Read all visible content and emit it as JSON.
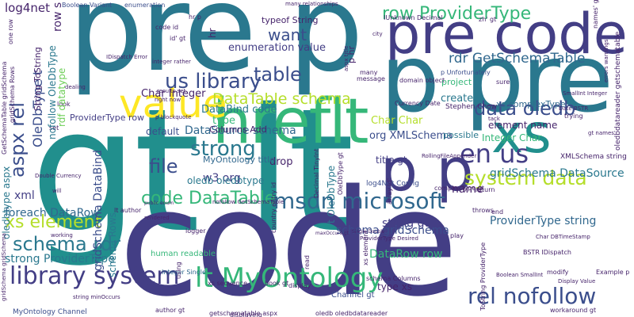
{
  "palette": {
    "dark_blue": "#3b4e8c",
    "navy": "#433e85",
    "purple": "#46246b",
    "teal": "#218f8d",
    "teal_dark": "#2a788e",
    "blue": "#31688e",
    "green": "#35b779",
    "light_green": "#6ece58",
    "lime": "#b5de2b",
    "yellow": "#fde725"
  },
  "words": {
    "gt_lt": "gt lt",
    "code_pre_bottom": "code",
    "pre_p_top": "pre p",
    "pre_code": "pre code",
    "p_pre": "p pre",
    "p_p": "p p",
    "hreflt": "hreflt",
    "value": "value",
    "xs": "xs",
    "row_providertype": "row ProviderType",
    "us_library": "us library",
    "table": "table",
    "aspx_rel": "aspx rel",
    "rdr_getschematable": "rdr GetSchemaTable",
    "datatable_schema": "DataTable schema",
    "msdn_microsoft": "msdn microsoft",
    "system_data": "system data",
    "strong": "strong",
    "file": "file",
    "code_datatable": "code DataTable",
    "library_system": "library system",
    "lt_myontology": "lt MyOntology",
    "rel_nofollow": "rel nofollow",
    "schema_rdr": "schema rdr",
    "xs_element": "xs element",
    "en_us": "en us",
    "data_oledb": "data oledb",
    "want": "want",
    "enumeration_value": "enumeration value",
    "gridschema_datasource": "gridSchema DataSource",
    "log4net": "log4net",
    "row_s": "row s",
    "p_hr": "p hr",
    "char_integer": "Char Integer",
    "databind_code": "DataBind code",
    "datasource_schema": "DataSource schema",
    "oledbtype_t": "OleDbType t",
    "nofollow_oledbtype": "nofollow OleDbType",
    "element_name": "element name",
    "integer_char": "Integer Char",
    "char_char": "Char Char",
    "org_xmlschema": "org XMLSchema",
    "providertype_string": "ProviderType string",
    "string_gt": "string gt",
    "datarow_row": "DataRow row",
    "schema_gridschema": "schema gridSchema",
    "foreach_datarow": "foreach DataRow",
    "strong_providertype": "strong ProviderType",
    "w3_org": "w3 org",
    "oledb_oledbtype": "oledb oledbtype",
    "create": "create",
    "name": "name",
    "type_xs": "type xs",
    "xml": "xml",
    "title_gt": "title gt",
    "xs_complextype": "xs complexType",
    "type": "type",
    "default": "default",
    "possible": "possible",
    "project": "project",
    "gridschema_databind": "gridSchema DataBind",
    "typeof_string": "typeof String",
    "drop": "drop",
    "providertype_row": "ProviderType row",
    "columns_add": "Columns Add",
    "myontology_title": "MyOntology title",
    "rdf_datatype": "rdf datatype",
    "oledbtype_aspx": "oledbtype aspx",
    "human_readable": "human readable",
    "schema_rows": "schema Rows",
    "ot_oledbtype": "t OleDbType",
    "channel_gt": "Channel gt",
    "stephen_chow": "Stephen Chow",
    "boolean_variant": "Boolean Variant",
    "enumeration": "enumeration",
    "code_id": "code id",
    "id_gt": "id' gt",
    "p_unfortunately": "p Unfortunately",
    "domain_object": "domain object",
    "names_gt": "names' gt",
    "array_id": "array id'",
    "myontology_channel": "MyOntology Channel",
    "string_minoccurs": "string minOccurs",
    "book_gt": "book gt",
    "sequence_gt": "sequence gt",
    "integer_single": "Integer Single",
    "xs_sequence": "xs sequence",
    "example_p": "Example p",
    "modify": "modify",
    "smallint_integer": "SmallInt Integer",
    "date_bstr": "Date BSTR",
    "gt_names": "gt names'",
    "idbtype_aspx": "ldbType aspx",
    "log4net_config": "log4Net Config",
    "xmlschema_string": "XMLSchema string",
    "rollingfileappender": "RollingFileAppender",
    "complextype_gt": "complexType gt",
    "display_value": "Display Value",
    "char_dbtimestamp": "Char DBTimeStamp",
    "getschematable_aspx": "getschematable aspx",
    "author_gt": "author gt",
    "oledb_oledbdatareader": "oledb oledbdatareader",
    "idispatch_error": "IDispatch Error",
    "integer_rather": "integer rather",
    "results_set": "results set",
    "right_now": "right now",
    "p_blockquote": "p blockquote",
    "country_entry_id": "country entry id",
    "public_enum": "public enum",
    "nofollow_getschematable": "nofollow GetSchemaTable",
    "many_relationships": "many relationships",
    "hr_p": "hr p",
    "hr": "hr",
    "unknown_decimal": "IUnknown Decimal",
    "char_integer2": "Char Integer",
    "schema_columns": "schema Columns",
    "xs_element2": "xs element",
    "bstr_idispatch": "BSTR IDispatch",
    "maxoccurs_gt": "maxOccurs gt",
    "single_double": "Single Double",
    "logger": "logger",
    "displaying": "displaying",
    "decimal_tinyint": "Decimal TinyInt",
    "oledbdatareader_getschematable": "oledbdatareader getschematable",
    "oledbtype_gt": "OleDbType gt",
    "oledb_gt": "OLEDB gt",
    "lt_author": "lt author",
    "return": "return",
    "throws": "throws",
    "end": "end",
    "trying": "trying",
    "look": "look",
    "set": "set",
    "sure": "sure",
    "many": "many",
    "message": "message",
    "currency_date": "Currency Date",
    "city": "city",
    "play": "play",
    "read": "read",
    "using": "using",
    "display": "display",
    "workaround_gt": "workaround gt",
    "dealing": "dealing",
    "working": "working",
    "rendered": "rendered",
    "will": "will",
    "tack": "tack",
    "zh_gt": "zh' gt",
    "gridschema_gridschema": "gridSchema gridSchema",
    "one_row": "one row",
    "double_currency": "Double Currency",
    "string_tostring": "String ToString",
    "gridschema_rows": "gridSchema Rows",
    "getschematable_gridschema": "GetSchemaTable gridSchema",
    "providertype_desired": "ProviderType Desired",
    "errors_warnings": "errors warnings",
    "boolean_smallint": "Boolean SmallInt",
    "oledbdatareader_getschematable2": "oledbdatareader getschematable",
    "tostring_providertype": "ToString ProviderType",
    "aspx_title": "aspx title"
  }
}
